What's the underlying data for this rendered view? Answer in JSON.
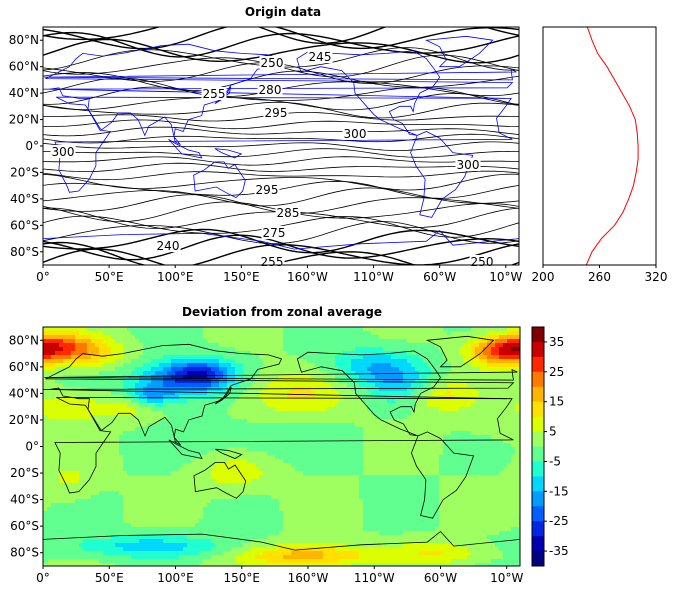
{
  "chart_data": [
    {
      "type": "contour",
      "title": "Origin data",
      "x_ticks": [
        "0°",
        "50°E",
        "100°E",
        "150°E",
        "160°W",
        "110°W",
        "60°W",
        "10°W"
      ],
      "y_ticks": [
        "80°N",
        "60°N",
        "40°N",
        "20°N",
        "0°",
        "20°S",
        "40°S",
        "60°S",
        "80°S"
      ],
      "contour_labels": [
        "245",
        "250",
        "255",
        "280",
        "295",
        "300",
        "300",
        "300",
        "295",
        "285",
        "275",
        "240",
        "255",
        "250"
      ],
      "line_color": "#000000",
      "coastline_color": "#0000ff"
    },
    {
      "type": "line",
      "title": "",
      "xlim": [
        200,
        320
      ],
      "x_ticks": [
        "200",
        "260",
        "320"
      ],
      "y": [
        -90,
        -80,
        -70,
        -60,
        -50,
        -40,
        -30,
        -20,
        -10,
        0,
        10,
        20,
        30,
        40,
        50,
        60,
        70,
        80,
        90
      ],
      "values": [
        246,
        252,
        262,
        276,
        285,
        291,
        296,
        299,
        301,
        301,
        300,
        298,
        292,
        284,
        276,
        268,
        258,
        252,
        247
      ],
      "color": "#ff0000"
    },
    {
      "type": "heatmap",
      "title": "Deviation from zonal average",
      "x_ticks": [
        "0°",
        "50°E",
        "100°E",
        "150°E",
        "160°W",
        "110°W",
        "60°W",
        "10°W"
      ],
      "y_ticks": [
        "80°N",
        "60°N",
        "40°N",
        "20°N",
        "0°",
        "20°S",
        "40°S",
        "60°S",
        "80°S"
      ],
      "colorbar_ticks": [
        "35",
        "25",
        "15",
        "5",
        "-5",
        "-15",
        "-25",
        "-35"
      ],
      "colorbar_range": [
        -40,
        40
      ],
      "colorbar_colors": [
        "#800000",
        "#c80000",
        "#ff2800",
        "#ff7800",
        "#ffb400",
        "#ffe000",
        "#dcff00",
        "#a0ff60",
        "#60ff90",
        "#20ffd0",
        "#00d8ff",
        "#009cff",
        "#0060ff",
        "#0028e0",
        "#0000b0",
        "#000080"
      ]
    }
  ]
}
